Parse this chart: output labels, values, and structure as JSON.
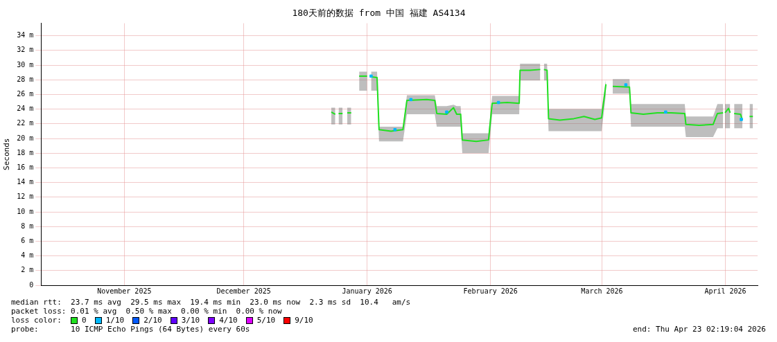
{
  "chart_data": {
    "type": "line",
    "title": "180天前的数据 from 中国 福建 AS4134",
    "ylabel": "Seconds",
    "xlim": [
      "2025-10-25T02:19",
      "2026-04-23T02:19"
    ],
    "xticks": [
      {
        "value": "2025-11-15",
        "label": "November 2025"
      },
      {
        "value": "2025-12-15",
        "label": "December 2025"
      },
      {
        "value": "2026-01-15",
        "label": "January 2026"
      },
      {
        "value": "2026-02-15",
        "label": "February 2026"
      },
      {
        "value": "2026-03-15",
        "label": "March 2026"
      },
      {
        "value": "2026-04-15",
        "label": "April 2026"
      }
    ],
    "ylim": [
      0,
      35.7
    ],
    "yticks": [
      0,
      {
        "value": 2,
        "label": "2 m"
      },
      {
        "value": 4,
        "label": "4 m"
      },
      {
        "value": 6,
        "label": "6 m"
      },
      {
        "value": 8,
        "label": "8 m"
      },
      {
        "value": 10,
        "label": "10 m"
      },
      {
        "value": 12,
        "label": "12 m"
      },
      {
        "value": 14,
        "label": "14 m"
      },
      {
        "value": 16,
        "label": "16 m"
      },
      {
        "value": 18,
        "label": "18 m"
      },
      {
        "value": 20,
        "label": "20 m"
      },
      {
        "value": 22,
        "label": "22 m"
      },
      {
        "value": 24,
        "label": "24 m"
      },
      {
        "value": 26,
        "label": "26 m"
      },
      {
        "value": 28,
        "label": "28 m"
      },
      {
        "value": 30,
        "label": "30 m"
      },
      {
        "value": 32,
        "label": "32 m"
      },
      {
        "value": 34,
        "label": "34 m"
      }
    ],
    "grid": true,
    "legend": "bottom left",
    "legend_title": "loss color:",
    "series": [
      {
        "name": "0",
        "color": "#20e020",
        "x": [
          "2026-01-06",
          "2026-01-07",
          "2026-01-07T12:00",
          "2026-01-07T20:00",
          "2026-01-08T20:00",
          "2026-01-09",
          "2026-01-10",
          "2026-01-11",
          "2026-01-12",
          "2026-01-13",
          "2026-01-15",
          "2026-01-15T12:00",
          "2026-01-16",
          "2026-01-17T12:00",
          "2026-01-18",
          "2026-01-21",
          "2026-01-24",
          "2026-01-25",
          "2026-01-30",
          "2026-02-01",
          "2026-02-01T12:00",
          "2026-02-04",
          "2026-02-05T17:00",
          "2026-02-06T12:00",
          "2026-02-07T12:00",
          "2026-02-07T22:00",
          "2026-02-11T10:00",
          "2026-02-14T12:00",
          "2026-02-15T10:00",
          "2026-02-19T05:00",
          "2026-02-22T05:00",
          "2026-02-22T10:00",
          "2026-02-24T22:00",
          "2026-02-27T12:00",
          "2026-02-28T00:00",
          "2026-02-28T10:00",
          "2026-03-01T05:00",
          "2026-03-01T14:00",
          "2026-03-04T10:00",
          "2026-03-07T22:00",
          "2026-03-10T12:00",
          "2026-03-13T05:00",
          "2026-03-14T22:00",
          "2026-03-16T00:00",
          "2026-03-16T20:00",
          "2026-03-17T17:00",
          "2026-03-21T22:00",
          "2026-03-22T07:00",
          "2026-03-25T10:00",
          "2026-03-28T22:00",
          "2026-04-01T10:00",
          "2026-04-04T19:00",
          "2026-04-05T02:00",
          "2026-04-08T10:00",
          "2026-04-11T22:00",
          "2026-04-13T00:00",
          "2026-04-14T10:00",
          "2026-04-14T19:00",
          "2026-04-14T22:00",
          "2026-04-15T19:00",
          "2026-04-16T05:00",
          "2026-04-16T19:00",
          "2026-04-17T05:00",
          "2026-04-18T19:00",
          "2026-04-19T07:00",
          "2026-04-20T00:00",
          "2026-04-21T02:00",
          "2026-04-21T22:00"
        ],
        "values": [
          23.6,
          23.3,
          null,
          23.4,
          23.4,
          null,
          23.5,
          23.5,
          null,
          28.5,
          28.5,
          null,
          28.4,
          28.3,
          21.2,
          21.0,
          21.2,
          25.2,
          25.3,
          25.2,
          23.4,
          23.3,
          24.2,
          23.3,
          23.3,
          19.8,
          19.6,
          19.8,
          24.8,
          24.9,
          24.8,
          29.3,
          29.3,
          29.4,
          null,
          29.4,
          29.3,
          22.7,
          22.5,
          22.7,
          23.0,
          22.6,
          22.8,
          27.4,
          null,
          27.1,
          27.0,
          23.5,
          23.3,
          23.5,
          23.5,
          23.4,
          21.9,
          21.8,
          21.9,
          23.4,
          23.5,
          null,
          23.5,
          24.1,
          23.5,
          null,
          23.4,
          23.3,
          22.5,
          null,
          23.0,
          23.0
        ],
        "lower": [
          21.9,
          21.9,
          null,
          21.9,
          21.9,
          null,
          21.9,
          21.9,
          null,
          26.5,
          26.5,
          null,
          26.5,
          26.5,
          19.6,
          19.6,
          19.6,
          23.3,
          23.3,
          23.3,
          21.6,
          21.6,
          21.6,
          21.6,
          21.6,
          18.0,
          18.0,
          18.0,
          23.3,
          23.3,
          23.3,
          27.9,
          27.9,
          27.9,
          null,
          27.9,
          27.9,
          21.0,
          21.0,
          21.0,
          21.0,
          21.0,
          21.0,
          26.1,
          null,
          26.1,
          26.1,
          21.6,
          21.6,
          21.6,
          21.6,
          21.6,
          20.2,
          20.2,
          20.2,
          21.4,
          21.4,
          null,
          21.4,
          21.4,
          21.4,
          null,
          21.4,
          21.4,
          21.4,
          null,
          21.4,
          21.4
        ],
        "upper": [
          24.2,
          24.2,
          null,
          24.2,
          24.2,
          null,
          24.2,
          24.2,
          null,
          29.1,
          29.1,
          null,
          29.1,
          29.1,
          21.6,
          21.6,
          21.6,
          25.9,
          25.9,
          25.9,
          24.4,
          24.4,
          24.6,
          24.4,
          24.4,
          20.7,
          20.7,
          20.7,
          25.8,
          25.8,
          25.8,
          30.2,
          30.2,
          30.2,
          null,
          30.2,
          30.2,
          24.0,
          24.0,
          24.0,
          24.0,
          24.0,
          24.0,
          28.1,
          null,
          28.1,
          28.1,
          24.7,
          24.7,
          24.7,
          24.7,
          24.7,
          23.0,
          23.0,
          23.0,
          24.7,
          24.7,
          null,
          24.7,
          24.7,
          24.7,
          null,
          24.7,
          24.7,
          24.7,
          null,
          24.7,
          24.7
        ]
      },
      {
        "type": "scatter",
        "name": "1/10",
        "color": "#00b8ff",
        "x": [
          "2026-01-16",
          "2026-01-22",
          "2026-01-26",
          "2026-02-04",
          "2026-02-17",
          "2026-03-21",
          "2026-03-31",
          "2026-04-19"
        ],
        "values": [
          28.5,
          21.2,
          25.3,
          23.6,
          24.9,
          27.3,
          23.6,
          22.6
        ]
      },
      {
        "type": "scatter",
        "name": "2/10",
        "color": "#0059ff"
      },
      {
        "type": "scatter",
        "name": "3/10",
        "color": "#5e00ff"
      },
      {
        "type": "scatter",
        "name": "4/10",
        "color": "#7e00ff"
      },
      {
        "type": "scatter",
        "name": "5/10",
        "color": "#dd00ff"
      },
      {
        "type": "scatter",
        "name": "9/10",
        "color": "#ff0000"
      }
    ],
    "annotations": [
      "median rtt:  23.7 ms avg  29.5 ms max  19.4 ms min  23.0 ms now  2.3 ms sd  10.4   am/s",
      "packet loss: 0.01 % avg  0.50 % max  0.00 % min  0.00 % now",
      "probe:       10 ICMP Echo Pings (64 Bytes) every 60s",
      "end: Thu Apr 23 02:19:04 2026"
    ]
  }
}
